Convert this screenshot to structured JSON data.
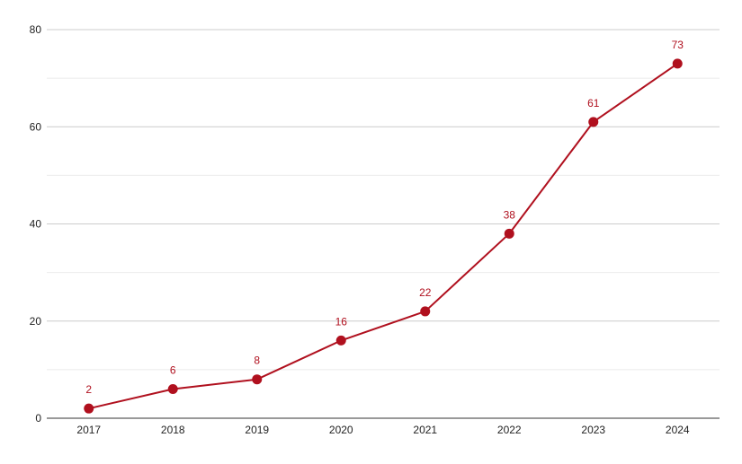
{
  "chart_data": {
    "type": "line",
    "title": "",
    "xlabel": "",
    "ylabel": "",
    "categories": [
      "2017",
      "2018",
      "2019",
      "2020",
      "2021",
      "2022",
      "2023",
      "2024"
    ],
    "series": [
      {
        "name": "",
        "values": [
          2,
          6,
          8,
          16,
          22,
          38,
          61,
          73
        ],
        "color": "#b0101e"
      }
    ],
    "ylim": [
      0,
      80
    ],
    "yticks": [
      0,
      20,
      40,
      60,
      80
    ],
    "grid": true,
    "legend": "none",
    "colors": {
      "major_grid": "#cccccc",
      "minor_grid": "#ebebeb",
      "axis": "#333333",
      "tick_text": "#222222",
      "label_text": "#b0101e"
    }
  }
}
